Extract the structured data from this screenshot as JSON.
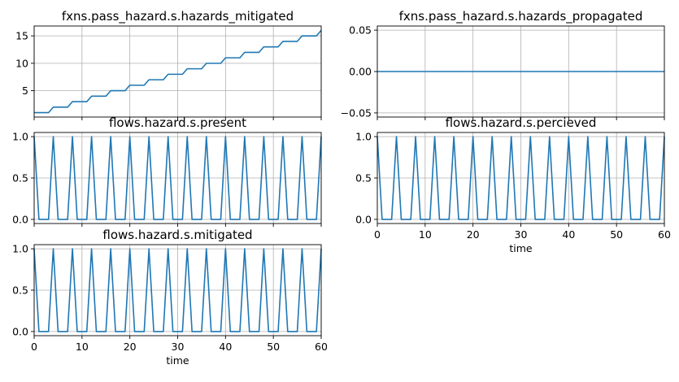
{
  "chart_data": [
    {
      "type": "line",
      "title": "fxns.pass_hazard.s.hazards_mitigated",
      "xlabel": "",
      "ylabel": "",
      "xlim": [
        0,
        60
      ],
      "ylim": [
        0.2,
        16.8
      ],
      "yticks": [
        5,
        10,
        15
      ],
      "ytick_labels": [
        "5",
        "10",
        "15"
      ],
      "xticks": [
        0,
        10,
        20,
        30,
        40,
        50,
        60
      ],
      "xtick_labels": [],
      "grid": true,
      "color": "#1f77b4",
      "series": [
        {
          "x": [
            0,
            1,
            2,
            3,
            4,
            5,
            6,
            7,
            8,
            9,
            10,
            11,
            12,
            13,
            14,
            15,
            16,
            17,
            18,
            19,
            20,
            21,
            22,
            23,
            24,
            25,
            26,
            27,
            28,
            29,
            30,
            31,
            32,
            33,
            34,
            35,
            36,
            37,
            38,
            39,
            40,
            41,
            42,
            43,
            44,
            45,
            46,
            47,
            48,
            49,
            50,
            51,
            52,
            53,
            54,
            55,
            56,
            57,
            58,
            59,
            60
          ],
          "values": [
            1,
            1,
            1,
            1,
            2,
            2,
            2,
            2,
            3,
            3,
            3,
            3,
            4,
            4,
            4,
            4,
            5,
            5,
            5,
            5,
            6,
            6,
            6,
            6,
            7,
            7,
            7,
            7,
            8,
            8,
            8,
            8,
            9,
            9,
            9,
            9,
            10,
            10,
            10,
            10,
            11,
            11,
            11,
            11,
            12,
            12,
            12,
            12,
            13,
            13,
            13,
            13,
            14,
            14,
            14,
            14,
            15,
            15,
            15,
            15,
            16
          ]
        }
      ]
    },
    {
      "type": "line",
      "title": "fxns.pass_hazard.s.hazards_propagated",
      "xlabel": "",
      "ylabel": "",
      "xlim": [
        0,
        60
      ],
      "ylim": [
        -0.055,
        0.055
      ],
      "yticks": [
        -0.05,
        0,
        0.05
      ],
      "ytick_labels": [
        "−0.05",
        "0.00",
        "0.05"
      ],
      "xticks": [
        0,
        10,
        20,
        30,
        40,
        50,
        60
      ],
      "xtick_labels": [],
      "grid": true,
      "color": "#1f77b4",
      "series": [
        {
          "x": [
            0,
            60
          ],
          "values": [
            0,
            0
          ]
        }
      ]
    },
    {
      "type": "line",
      "title": "flows.hazard.s.present",
      "xlabel": "",
      "ylabel": "",
      "xlim": [
        0,
        60
      ],
      "ylim": [
        -0.05,
        1.05
      ],
      "yticks": [
        0,
        0.5,
        1
      ],
      "ytick_labels": [
        "0.0",
        "0.5",
        "1.0"
      ],
      "xticks": [
        0,
        10,
        20,
        30,
        40,
        50,
        60
      ],
      "xtick_labels": [],
      "grid": true,
      "color": "#1f77b4",
      "series": [
        {
          "x": [
            0,
            1,
            2,
            3,
            4,
            5,
            6,
            7,
            8,
            9,
            10,
            11,
            12,
            13,
            14,
            15,
            16,
            17,
            18,
            19,
            20,
            21,
            22,
            23,
            24,
            25,
            26,
            27,
            28,
            29,
            30,
            31,
            32,
            33,
            34,
            35,
            36,
            37,
            38,
            39,
            40,
            41,
            42,
            43,
            44,
            45,
            46,
            47,
            48,
            49,
            50,
            51,
            52,
            53,
            54,
            55,
            56,
            57,
            58,
            59,
            60
          ],
          "values": [
            1,
            0,
            0,
            0,
            1,
            0,
            0,
            0,
            1,
            0,
            0,
            0,
            1,
            0,
            0,
            0,
            1,
            0,
            0,
            0,
            1,
            0,
            0,
            0,
            1,
            0,
            0,
            0,
            1,
            0,
            0,
            0,
            1,
            0,
            0,
            0,
            1,
            0,
            0,
            0,
            1,
            0,
            0,
            0,
            1,
            0,
            0,
            0,
            1,
            0,
            0,
            0,
            1,
            0,
            0,
            0,
            1,
            0,
            0,
            0,
            1
          ]
        }
      ]
    },
    {
      "type": "line",
      "title": "flows.hazard.s.percieved",
      "xlabel": "time",
      "ylabel": "",
      "xlim": [
        0,
        60
      ],
      "ylim": [
        -0.05,
        1.05
      ],
      "yticks": [
        0,
        0.5,
        1
      ],
      "ytick_labels": [
        "0.0",
        "0.5",
        "1.0"
      ],
      "xticks": [
        0,
        10,
        20,
        30,
        40,
        50,
        60
      ],
      "xtick_labels": [
        "0",
        "10",
        "20",
        "30",
        "40",
        "50",
        "60"
      ],
      "grid": true,
      "color": "#1f77b4",
      "series": [
        {
          "x": [
            0,
            1,
            2,
            3,
            4,
            5,
            6,
            7,
            8,
            9,
            10,
            11,
            12,
            13,
            14,
            15,
            16,
            17,
            18,
            19,
            20,
            21,
            22,
            23,
            24,
            25,
            26,
            27,
            28,
            29,
            30,
            31,
            32,
            33,
            34,
            35,
            36,
            37,
            38,
            39,
            40,
            41,
            42,
            43,
            44,
            45,
            46,
            47,
            48,
            49,
            50,
            51,
            52,
            53,
            54,
            55,
            56,
            57,
            58,
            59,
            60
          ],
          "values": [
            1,
            0,
            0,
            0,
            1,
            0,
            0,
            0,
            1,
            0,
            0,
            0,
            1,
            0,
            0,
            0,
            1,
            0,
            0,
            0,
            1,
            0,
            0,
            0,
            1,
            0,
            0,
            0,
            1,
            0,
            0,
            0,
            1,
            0,
            0,
            0,
            1,
            0,
            0,
            0,
            1,
            0,
            0,
            0,
            1,
            0,
            0,
            0,
            1,
            0,
            0,
            0,
            1,
            0,
            0,
            0,
            1,
            0,
            0,
            0,
            1
          ]
        }
      ]
    },
    {
      "type": "line",
      "title": "flows.hazard.s.mitigated",
      "xlabel": "time",
      "ylabel": "",
      "xlim": [
        0,
        60
      ],
      "ylim": [
        -0.05,
        1.05
      ],
      "yticks": [
        0,
        0.5,
        1
      ],
      "ytick_labels": [
        "0.0",
        "0.5",
        "1.0"
      ],
      "xticks": [
        0,
        10,
        20,
        30,
        40,
        50,
        60
      ],
      "xtick_labels": [
        "0",
        "10",
        "20",
        "30",
        "40",
        "50",
        "60"
      ],
      "grid": true,
      "color": "#1f77b4",
      "series": [
        {
          "x": [
            0,
            1,
            2,
            3,
            4,
            5,
            6,
            7,
            8,
            9,
            10,
            11,
            12,
            13,
            14,
            15,
            16,
            17,
            18,
            19,
            20,
            21,
            22,
            23,
            24,
            25,
            26,
            27,
            28,
            29,
            30,
            31,
            32,
            33,
            34,
            35,
            36,
            37,
            38,
            39,
            40,
            41,
            42,
            43,
            44,
            45,
            46,
            47,
            48,
            49,
            50,
            51,
            52,
            53,
            54,
            55,
            56,
            57,
            58,
            59,
            60
          ],
          "values": [
            1,
            0,
            0,
            0,
            1,
            0,
            0,
            0,
            1,
            0,
            0,
            0,
            1,
            0,
            0,
            0,
            1,
            0,
            0,
            0,
            1,
            0,
            0,
            0,
            1,
            0,
            0,
            0,
            1,
            0,
            0,
            0,
            1,
            0,
            0,
            0,
            1,
            0,
            0,
            0,
            1,
            0,
            0,
            0,
            1,
            0,
            0,
            0,
            1,
            0,
            0,
            0,
            1,
            0,
            0,
            0,
            1,
            0,
            0,
            0,
            1
          ]
        }
      ]
    }
  ]
}
